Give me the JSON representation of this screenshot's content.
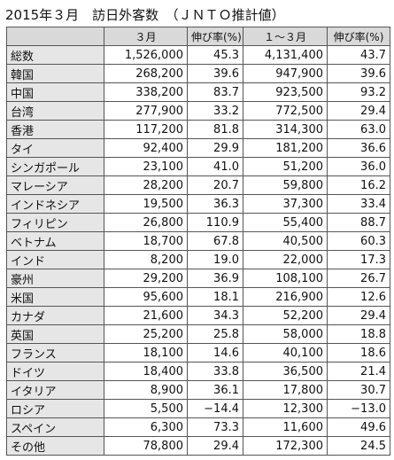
{
  "title": "2015年３月　訪日外客数　（ＪＮＴＯ推計値）",
  "table": {
    "header": [
      "",
      "３月",
      "伸び率(%)",
      "１～３月",
      "伸び率(%)"
    ],
    "rows": [
      [
        "総数",
        "1,526,000",
        "45.3",
        "4,131,400",
        "43.7"
      ],
      [
        "韓国",
        "268,200",
        "39.6",
        "947,900",
        "39.6"
      ],
      [
        "中国",
        "338,200",
        "83.7",
        "923,500",
        "93.2"
      ],
      [
        "台湾",
        "277,900",
        "33.2",
        "772,500",
        "29.4"
      ],
      [
        "香港",
        "117,200",
        "81.8",
        "314,300",
        "63.0"
      ],
      [
        "タイ",
        "92,400",
        "29.9",
        "181,200",
        "36.6"
      ],
      [
        "シンガポール",
        "23,100",
        "41.0",
        "51,200",
        "36.0"
      ],
      [
        "マレーシア",
        "28,200",
        "20.7",
        "59,800",
        "16.2"
      ],
      [
        "インドネシア",
        "19,500",
        "36.3",
        "37,300",
        "33.4"
      ],
      [
        "フィリピン",
        "26,800",
        "110.9",
        "55,400",
        "88.7"
      ],
      [
        "ベトナム",
        "18,700",
        "67.8",
        "40,500",
        "60.3"
      ],
      [
        "インド",
        "8,200",
        "19.0",
        "22,000",
        "17.3"
      ],
      [
        "豪州",
        "29,200",
        "36.9",
        "108,100",
        "26.7"
      ],
      [
        "米国",
        "95,600",
        "18.1",
        "216,900",
        "12.6"
      ],
      [
        "カナダ",
        "21,600",
        "34.3",
        "52,200",
        "29.4"
      ],
      [
        "英国",
        "25,200",
        "25.8",
        "58,000",
        "18.8"
      ],
      [
        "フランス",
        "18,100",
        "14.6",
        "40,100",
        "18.6"
      ],
      [
        "ドイツ",
        "18,400",
        "33.8",
        "36,500",
        "21.4"
      ],
      [
        "イタリア",
        "8,900",
        "36.1",
        "17,800",
        "30.7"
      ],
      [
        "ロシア",
        "5,500",
        "−14.4",
        "12,300",
        "−13.0"
      ],
      [
        "スペイン",
        "6,300",
        "73.3",
        "11,600",
        "49.6"
      ],
      [
        "その他",
        "78,800",
        "29.4",
        "172,300",
        "24.5"
      ]
    ]
  }
}
